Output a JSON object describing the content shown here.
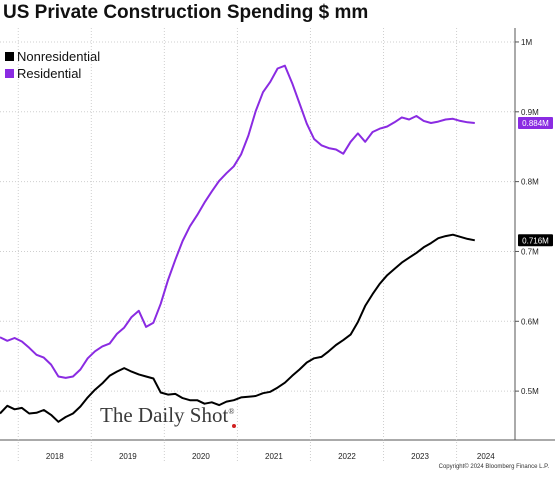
{
  "title": "US Private Construction Spending $ mm",
  "legend": [
    {
      "label": "Nonresidential",
      "color": "#000000"
    },
    {
      "label": "Residential",
      "color": "#8a2be2"
    }
  ],
  "watermark": "The Daily Shot",
  "watermark_mark": "®",
  "copyright": "Copyright© 2024 Bloomberg Finance L.P.",
  "chart_data": {
    "type": "line",
    "title": "US Private Construction Spending $ mm",
    "xlabel": "",
    "ylabel": "",
    "x_unit": "year",
    "xlim": [
      2017.75,
      2024.8
    ],
    "ylim": [
      0.43,
      1.02
    ],
    "y_ticks": [
      {
        "value": 1.0,
        "label": "1M"
      },
      {
        "value": 0.9,
        "label": "0.9M"
      },
      {
        "value": 0.8,
        "label": "0.8M"
      },
      {
        "value": 0.7,
        "label": "0.7M"
      },
      {
        "value": 0.6,
        "label": "0.6M"
      },
      {
        "value": 0.5,
        "label": "0.5M"
      }
    ],
    "x_ticks": [
      "2018",
      "2019",
      "2020",
      "2021",
      "2022",
      "2023",
      "2024"
    ],
    "year_boundaries": [
      2018,
      2019,
      2020,
      2021,
      2022,
      2023,
      2024
    ],
    "grid": "dotted",
    "legend_position": "top-left",
    "series": [
      {
        "name": "Nonresidential",
        "color": "#000000",
        "last_value_label": "0.716M",
        "last_value": 0.716,
        "x": [
          2017.75,
          2017.85,
          2017.95,
          2018.05,
          2018.15,
          2018.25,
          2018.35,
          2018.45,
          2018.55,
          2018.65,
          2018.75,
          2018.85,
          2018.95,
          2019.05,
          2019.15,
          2019.25,
          2019.35,
          2019.45,
          2019.55,
          2019.65,
          2019.75,
          2019.85,
          2019.95,
          2020.05,
          2020.15,
          2020.25,
          2020.35,
          2020.45,
          2020.55,
          2020.65,
          2020.75,
          2020.85,
          2020.95,
          2021.05,
          2021.15,
          2021.25,
          2021.35,
          2021.45,
          2021.55,
          2021.65,
          2021.75,
          2021.85,
          2021.95,
          2022.05,
          2022.15,
          2022.25,
          2022.35,
          2022.45,
          2022.55,
          2022.65,
          2022.75,
          2022.85,
          2022.95,
          2023.05,
          2023.15,
          2023.25,
          2023.35,
          2023.45,
          2023.55,
          2023.65,
          2023.75,
          2023.85,
          2023.95,
          2024.05,
          2024.15,
          2024.25
        ],
        "values": [
          0.468,
          0.479,
          0.474,
          0.476,
          0.468,
          0.469,
          0.473,
          0.466,
          0.456,
          0.463,
          0.468,
          0.478,
          0.491,
          0.502,
          0.511,
          0.522,
          0.528,
          0.533,
          0.528,
          0.524,
          0.521,
          0.518,
          0.498,
          0.495,
          0.496,
          0.49,
          0.487,
          0.487,
          0.482,
          0.484,
          0.48,
          0.485,
          0.487,
          0.491,
          0.492,
          0.493,
          0.497,
          0.499,
          0.505,
          0.512,
          0.522,
          0.531,
          0.541,
          0.547,
          0.549,
          0.557,
          0.566,
          0.573,
          0.581,
          0.599,
          0.622,
          0.639,
          0.654,
          0.666,
          0.675,
          0.684,
          0.691,
          0.698,
          0.706,
          0.712,
          0.719,
          0.722,
          0.724,
          0.721,
          0.718,
          0.716
        ]
      },
      {
        "name": "Residential",
        "color": "#8a2be2",
        "last_value_label": "0.884M",
        "last_value": 0.884,
        "x": [
          2017.75,
          2017.85,
          2017.95,
          2018.05,
          2018.15,
          2018.25,
          2018.35,
          2018.45,
          2018.55,
          2018.65,
          2018.75,
          2018.85,
          2018.95,
          2019.05,
          2019.15,
          2019.25,
          2019.35,
          2019.45,
          2019.55,
          2019.65,
          2019.75,
          2019.85,
          2019.95,
          2020.05,
          2020.15,
          2020.25,
          2020.35,
          2020.45,
          2020.55,
          2020.65,
          2020.75,
          2020.85,
          2020.95,
          2021.05,
          2021.15,
          2021.25,
          2021.35,
          2021.45,
          2021.55,
          2021.65,
          2021.75,
          2021.85,
          2021.95,
          2022.05,
          2022.15,
          2022.25,
          2022.35,
          2022.45,
          2022.55,
          2022.65,
          2022.75,
          2022.85,
          2022.95,
          2023.05,
          2023.15,
          2023.25,
          2023.35,
          2023.45,
          2023.55,
          2023.65,
          2023.75,
          2023.85,
          2023.95,
          2024.05,
          2024.15,
          2024.25
        ],
        "values": [
          0.577,
          0.572,
          0.576,
          0.571,
          0.562,
          0.552,
          0.548,
          0.538,
          0.521,
          0.519,
          0.521,
          0.531,
          0.547,
          0.557,
          0.564,
          0.568,
          0.582,
          0.591,
          0.606,
          0.615,
          0.592,
          0.598,
          0.625,
          0.659,
          0.688,
          0.715,
          0.736,
          0.752,
          0.77,
          0.786,
          0.801,
          0.812,
          0.822,
          0.839,
          0.866,
          0.901,
          0.928,
          0.943,
          0.962,
          0.966,
          0.941,
          0.912,
          0.883,
          0.861,
          0.852,
          0.848,
          0.846,
          0.84,
          0.857,
          0.869,
          0.857,
          0.871,
          0.876,
          0.879,
          0.885,
          0.892,
          0.889,
          0.894,
          0.887,
          0.884,
          0.886,
          0.889,
          0.89,
          0.887,
          0.885,
          0.884
        ]
      }
    ]
  }
}
